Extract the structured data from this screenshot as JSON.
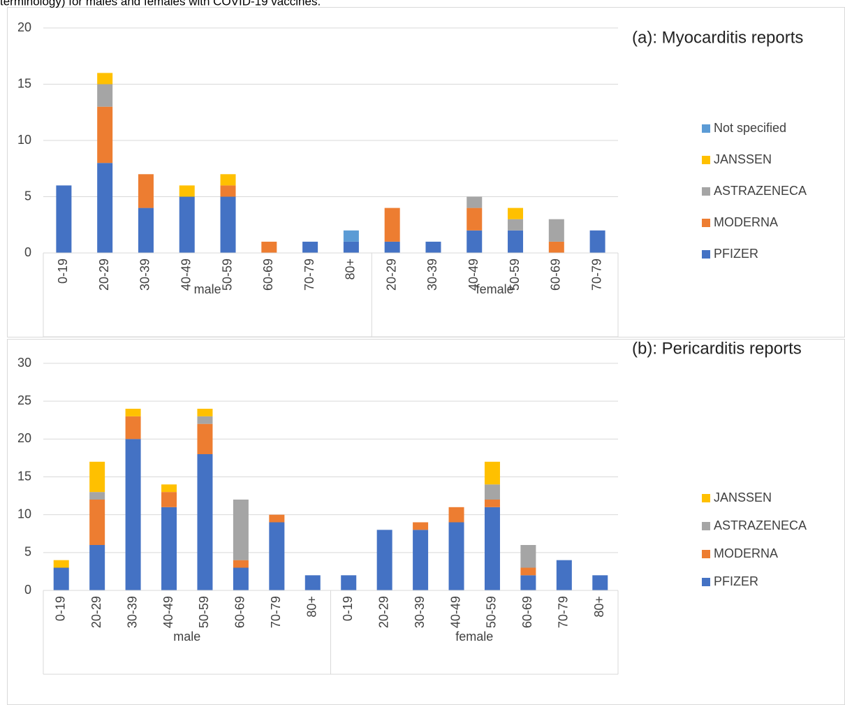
{
  "caption": "terminology) for males and females with COVID-19 vaccines.",
  "chart_data": [
    {
      "type": "bar",
      "stacked": true,
      "annotation": "(a): Myocarditis reports",
      "groups": [
        {
          "label": "male",
          "categories": [
            "0-19",
            "20-29",
            "30-39",
            "40-49",
            "50-59",
            "60-69",
            "70-79",
            "80+"
          ]
        },
        {
          "label": "female",
          "categories": [
            "20-29",
            "30-39",
            "40-49",
            "50-59",
            "60-69",
            "70-79"
          ]
        }
      ],
      "series": [
        {
          "name": "PFIZER",
          "color": "#4472c4",
          "values": [
            6,
            8,
            4,
            5,
            5,
            0,
            1,
            1,
            1,
            1,
            2,
            2,
            0,
            2
          ]
        },
        {
          "name": "MODERNA",
          "color": "#ed7d31",
          "values": [
            0,
            5,
            3,
            0,
            1,
            1,
            0,
            0,
            3,
            0,
            2,
            0,
            1,
            0
          ]
        },
        {
          "name": "ASTRAZENECA",
          "color": "#a5a5a5",
          "values": [
            0,
            2,
            0,
            0,
            0,
            0,
            0,
            0,
            0,
            0,
            1,
            1,
            2,
            0
          ]
        },
        {
          "name": "JANSSEN",
          "color": "#ffc000",
          "values": [
            0,
            1,
            0,
            1,
            1,
            0,
            0,
            0,
            0,
            0,
            0,
            1,
            0,
            0
          ]
        },
        {
          "name": "Not specified",
          "color": "#5b9bd5",
          "values": [
            0,
            0,
            0,
            0,
            0,
            0,
            0,
            1,
            0,
            0,
            0,
            0,
            0,
            0
          ]
        }
      ],
      "ylim": [
        0,
        20
      ],
      "yticks": [
        0,
        5,
        10,
        15,
        20
      ],
      "grid": true,
      "legend": "right"
    },
    {
      "type": "bar",
      "stacked": true,
      "annotation": "(b): Pericarditis reports",
      "groups": [
        {
          "label": "male",
          "categories": [
            "0-19",
            "20-29",
            "30-39",
            "40-49",
            "50-59",
            "60-69",
            "70-79",
            "80+"
          ]
        },
        {
          "label": "female",
          "categories": [
            "0-19",
            "20-29",
            "30-39",
            "40-49",
            "50-59",
            "60-69",
            "70-79",
            "80+"
          ]
        }
      ],
      "series": [
        {
          "name": "PFIZER",
          "color": "#4472c4",
          "values": [
            3,
            6,
            20,
            11,
            18,
            3,
            9,
            2,
            2,
            8,
            8,
            9,
            11,
            2,
            4,
            2
          ]
        },
        {
          "name": "MODERNA",
          "color": "#ed7d31",
          "values": [
            0,
            6,
            3,
            2,
            4,
            1,
            1,
            0,
            0,
            0,
            1,
            2,
            1,
            1,
            0,
            0
          ]
        },
        {
          "name": "ASTRAZENECA",
          "color": "#a5a5a5",
          "values": [
            0,
            1,
            0,
            0,
            1,
            8,
            0,
            0,
            0,
            0,
            0,
            0,
            2,
            3,
            0,
            0
          ]
        },
        {
          "name": "JANSSEN",
          "color": "#ffc000",
          "values": [
            1,
            4,
            1,
            1,
            1,
            0,
            0,
            0,
            0,
            0,
            0,
            0,
            3,
            0,
            0,
            0
          ]
        }
      ],
      "ylim": [
        0,
        30
      ],
      "yticks": [
        0,
        5,
        10,
        15,
        20,
        25,
        30
      ],
      "grid": true,
      "legend": "right"
    }
  ]
}
